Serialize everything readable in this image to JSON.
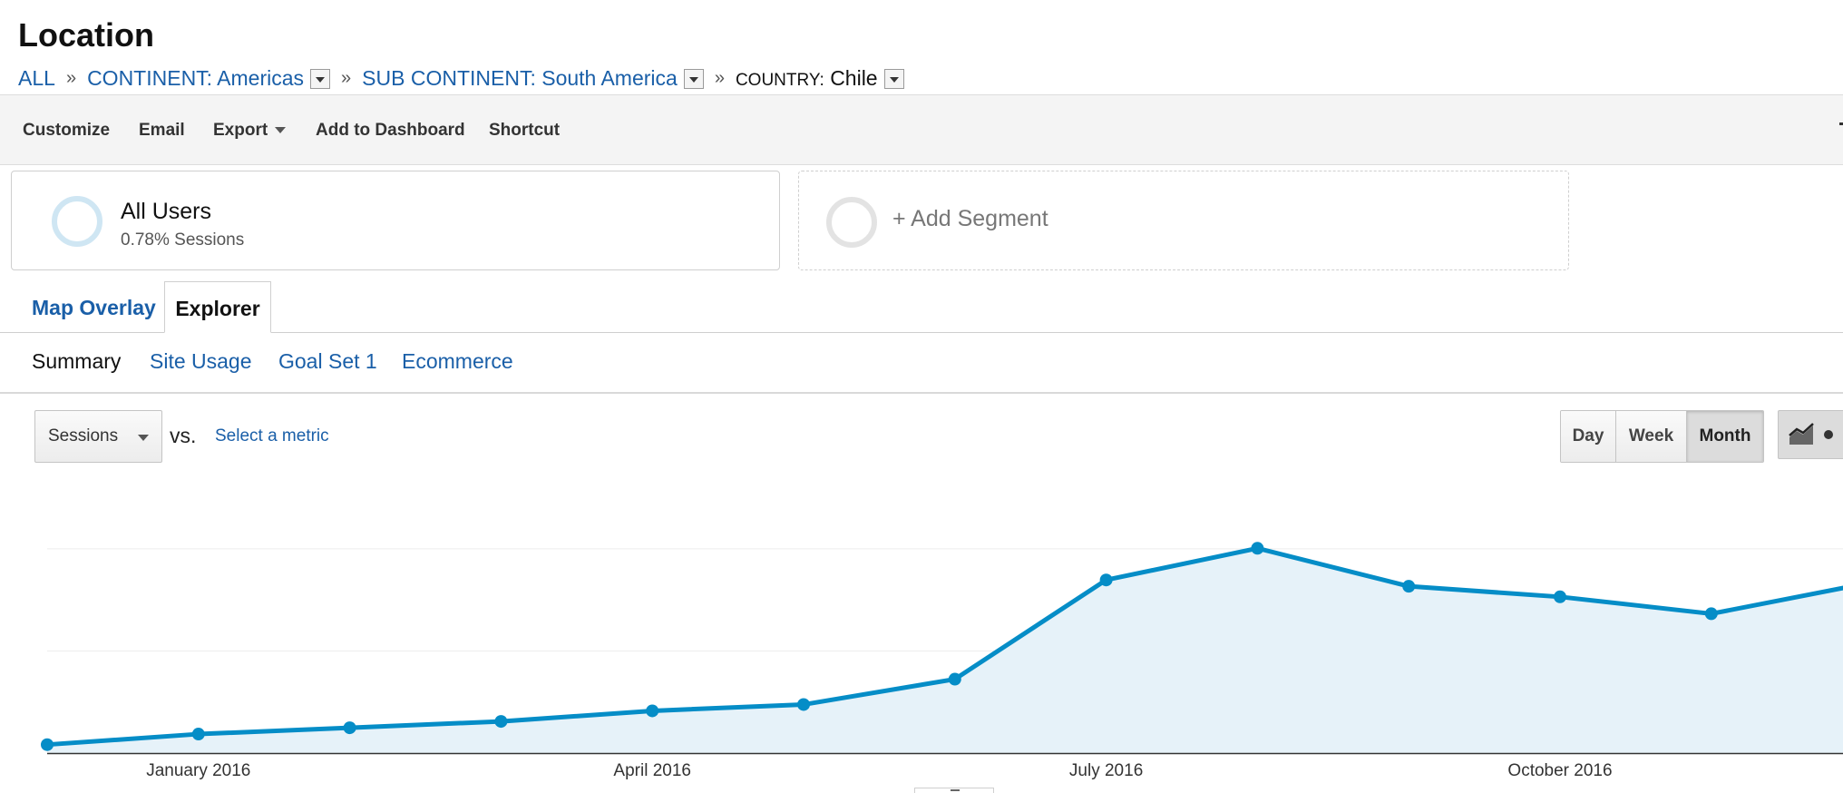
{
  "page": {
    "title": "Location"
  },
  "breadcrumb": {
    "all": "ALL",
    "continent": "CONTINENT: Americas",
    "sub_continent": "SUB CONTINENT: South America",
    "separator": "»",
    "country_key": "COUNTRY:",
    "country_value": "Chile"
  },
  "toolbar": {
    "customize": "Customize",
    "email": "Email",
    "export": "Export",
    "add_to_dashboard": "Add to Dashboard",
    "shortcut": "Shortcut"
  },
  "segments": {
    "active": {
      "name": "All Users",
      "detail": "0.78% Sessions"
    },
    "add_label": "+ Add Segment"
  },
  "view_tabs": {
    "map_overlay": "Map Overlay",
    "explorer": "Explorer",
    "active": "Explorer"
  },
  "sub_tabs": {
    "summary": "Summary",
    "site_usage": "Site Usage",
    "goal_set_1": "Goal Set 1",
    "ecommerce": "Ecommerce",
    "active": "Summary"
  },
  "metric": {
    "selected": "Sessions",
    "vs_label": "vs.",
    "select_metric": "Select a metric"
  },
  "period": {
    "day": "Day",
    "week": "Week",
    "month": "Month",
    "active": "Month"
  },
  "icons": {
    "metric_dropdown": "chevron-down-icon",
    "chart_type": "line-chart-icon",
    "breadcrumb_dropdown": "chevron-down-icon"
  },
  "colors": {
    "line": "#058dc7",
    "area": "#e6f2f9",
    "link": "#1a5fa8",
    "gridline": "#eeeeee"
  },
  "chart_data": {
    "type": "area",
    "x": [
      "December 2015",
      "January 2016",
      "February 2016",
      "March 2016",
      "April 2016",
      "May 2016",
      "June 2016",
      "July 2016",
      "August 2016",
      "September 2016",
      "October 2016",
      "November 2016",
      "December 2016"
    ],
    "series": [
      {
        "values": [
          0,
          5,
          8,
          11,
          16,
          19,
          31,
          78,
          93,
          75,
          70,
          62,
          76
        ]
      }
    ],
    "ylim": [
      -4,
      100
    ],
    "gridlines": 2,
    "x_tick_labels": [
      "January 2016",
      "April 2016",
      "July 2016",
      "October 2016"
    ],
    "y_axis_labels_visible": false,
    "legend": "none"
  }
}
